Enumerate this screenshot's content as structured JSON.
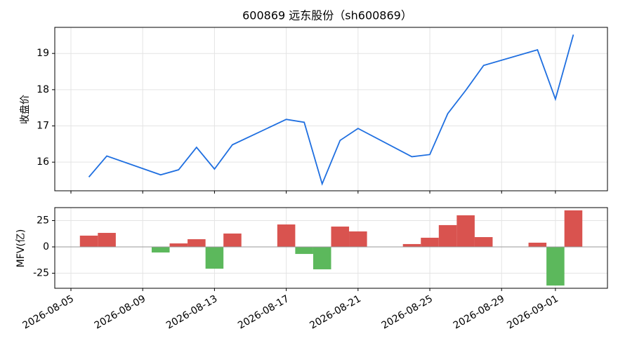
{
  "chart_data": [
    {
      "type": "line",
      "title": "600869 远东股份（sh600869）",
      "y_label": "收盘价",
      "color": "#1f6fe0",
      "grid": true,
      "x": [
        "2026-08-06",
        "2026-08-07",
        "2026-08-10",
        "2026-08-11",
        "2026-08-12",
        "2026-08-13",
        "2026-08-14",
        "2026-08-17",
        "2026-08-18",
        "2026-08-19",
        "2026-08-20",
        "2026-08-21",
        "2026-08-24",
        "2026-08-25",
        "2026-08-26",
        "2026-08-27",
        "2026-08-28",
        "2026-08-31",
        "2026-09-01",
        "2026-09-02"
      ],
      "values": [
        15.59,
        16.17,
        15.65,
        15.79,
        16.41,
        15.81,
        16.48,
        17.18,
        17.1,
        15.4,
        16.6,
        16.93,
        16.15,
        16.21,
        17.34,
        17.98,
        18.67,
        19.1,
        17.74,
        19.52
      ],
      "xlim": [
        "2026-08-04T02:24",
        "2026-09-03T21:36"
      ],
      "ylim": [
        15.21,
        19.72
      ],
      "yticks": [
        16,
        17,
        18,
        19
      ]
    },
    {
      "type": "bar",
      "y_label": "MFV(亿)",
      "positive_color": "#d9534f",
      "negative_color": "#5cb85c",
      "grid": true,
      "x": [
        "2026-08-06",
        "2026-08-07",
        "2026-08-10",
        "2026-08-11",
        "2026-08-12",
        "2026-08-13",
        "2026-08-14",
        "2026-08-17",
        "2026-08-18",
        "2026-08-19",
        "2026-08-20",
        "2026-08-21",
        "2026-08-24",
        "2026-08-25",
        "2026-08-26",
        "2026-08-27",
        "2026-08-28",
        "2026-08-31",
        "2026-09-01",
        "2026-09-02"
      ],
      "values": [
        10.7,
        13.3,
        -5.3,
        3.3,
        7.3,
        -20.7,
        12.7,
        21.3,
        -6.7,
        -21.3,
        19.3,
        14.7,
        2.7,
        8.7,
        20.7,
        30,
        9.3,
        4,
        -36.7,
        34.7
      ],
      "xlim": [
        "2026-08-04T02:24",
        "2026-09-03T21:36"
      ],
      "ylim": [
        -39.3,
        37.3
      ],
      "yticks": [
        -25,
        0,
        25
      ],
      "xticks": [
        "2026-08-05",
        "2026-08-09",
        "2026-08-13",
        "2026-08-17",
        "2026-08-21",
        "2026-08-25",
        "2026-08-29",
        "2026-09-01"
      ]
    }
  ]
}
